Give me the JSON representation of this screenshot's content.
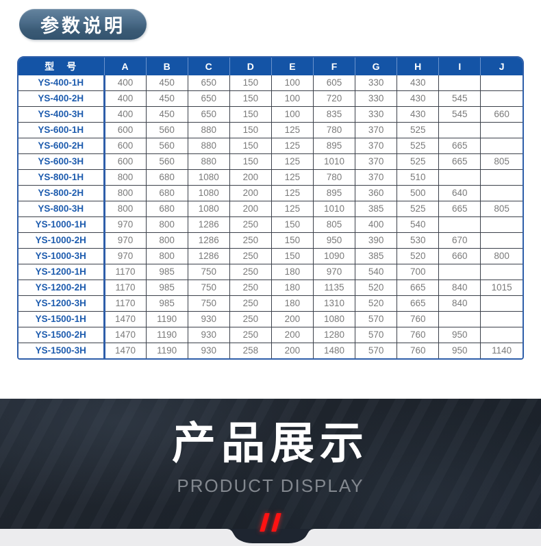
{
  "badge": {
    "label": "参数说明"
  },
  "table": {
    "headers": [
      "型　号",
      "A",
      "B",
      "C",
      "D",
      "E",
      "F",
      "G",
      "H",
      "I",
      "J"
    ],
    "rows": [
      {
        "model": "YS-400-1H",
        "values": [
          "400",
          "450",
          "650",
          "150",
          "100",
          "605",
          "330",
          "430",
          "",
          ""
        ]
      },
      {
        "model": "YS-400-2H",
        "values": [
          "400",
          "450",
          "650",
          "150",
          "100",
          "720",
          "330",
          "430",
          "545",
          ""
        ]
      },
      {
        "model": "YS-400-3H",
        "values": [
          "400",
          "450",
          "650",
          "150",
          "100",
          "835",
          "330",
          "430",
          "545",
          "660"
        ]
      },
      {
        "model": "YS-600-1H",
        "values": [
          "600",
          "560",
          "880",
          "150",
          "125",
          "780",
          "370",
          "525",
          "",
          ""
        ]
      },
      {
        "model": "YS-600-2H",
        "values": [
          "600",
          "560",
          "880",
          "150",
          "125",
          "895",
          "370",
          "525",
          "665",
          ""
        ]
      },
      {
        "model": "YS-600-3H",
        "values": [
          "600",
          "560",
          "880",
          "150",
          "125",
          "1010",
          "370",
          "525",
          "665",
          "805"
        ]
      },
      {
        "model": "YS-800-1H",
        "values": [
          "800",
          "680",
          "1080",
          "200",
          "125",
          "780",
          "370",
          "510",
          "",
          ""
        ]
      },
      {
        "model": "YS-800-2H",
        "values": [
          "800",
          "680",
          "1080",
          "200",
          "125",
          "895",
          "360",
          "500",
          "640",
          ""
        ]
      },
      {
        "model": "YS-800-3H",
        "values": [
          "800",
          "680",
          "1080",
          "200",
          "125",
          "1010",
          "385",
          "525",
          "665",
          "805"
        ]
      },
      {
        "model": "YS-1000-1H",
        "values": [
          "970",
          "800",
          "1286",
          "250",
          "150",
          "805",
          "400",
          "540",
          "",
          ""
        ]
      },
      {
        "model": "YS-1000-2H",
        "values": [
          "970",
          "800",
          "1286",
          "250",
          "150",
          "950",
          "390",
          "530",
          "670",
          ""
        ]
      },
      {
        "model": "YS-1000-3H",
        "values": [
          "970",
          "800",
          "1286",
          "250",
          "150",
          "1090",
          "385",
          "520",
          "660",
          "800"
        ]
      },
      {
        "model": "YS-1200-1H",
        "values": [
          "1170",
          "985",
          "750",
          "250",
          "180",
          "970",
          "540",
          "700",
          "",
          ""
        ]
      },
      {
        "model": "YS-1200-2H",
        "values": [
          "1170",
          "985",
          "750",
          "250",
          "180",
          "1135",
          "520",
          "665",
          "840",
          "1015"
        ]
      },
      {
        "model": "YS-1200-3H",
        "values": [
          "1170",
          "985",
          "750",
          "250",
          "180",
          "1310",
          "520",
          "665",
          "840",
          ""
        ]
      },
      {
        "model": "YS-1500-1H",
        "values": [
          "1470",
          "1190",
          "930",
          "250",
          "200",
          "1080",
          "570",
          "760",
          "",
          ""
        ]
      },
      {
        "model": "YS-1500-2H",
        "values": [
          "1470",
          "1190",
          "930",
          "250",
          "200",
          "1280",
          "570",
          "760",
          "950",
          ""
        ]
      },
      {
        "model": "YS-1500-3H",
        "values": [
          "1470",
          "1190",
          "930",
          "258",
          "200",
          "1480",
          "570",
          "760",
          "950",
          "1140"
        ]
      }
    ]
  },
  "banner": {
    "title_cn": "产品展示",
    "title_en": "PRODUCT DISPLAY",
    "slash_mark": "//"
  },
  "colors": {
    "header_blue": "#1454a6",
    "outer_border_blue": "#2e5ea9",
    "inner_border_dark": "#3a3f49",
    "model_text_blue": "#1e5cae",
    "value_text_gray": "#7a7a7a",
    "badge_gradient_top": "#64839e",
    "badge_gradient_bottom": "#33536e",
    "banner_background": "#20262f",
    "banner_subtitle_gray": "#83888f",
    "accent_red": "#ff1212",
    "bottom_strip_gray": "#ececee"
  }
}
